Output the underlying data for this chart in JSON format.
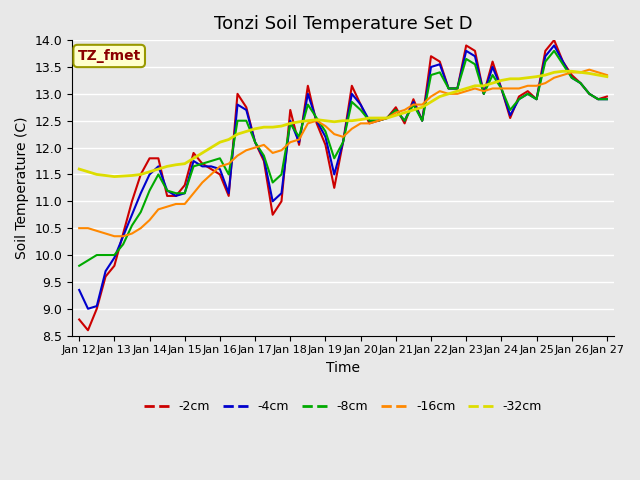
{
  "title": "Tonzi Soil Temperature Set D",
  "xlabel": "Time",
  "ylabel": "Soil Temperature (C)",
  "ylim": [
    8.5,
    14.0
  ],
  "xlim": [
    0,
    15
  ],
  "background_color": "#e8e8e8",
  "plot_bg_color": "#e8e8e8",
  "grid_color": "#ffffff",
  "label_box_text": "TZ_fmet",
  "label_box_bg": "#ffffcc",
  "label_box_fg": "#8b0000",
  "x_tick_labels": [
    "Jan 12",
    "Jan 13",
    "Jan 14",
    "Jan 15",
    "Jan 16",
    "Jan 17",
    "Jan 18",
    "Jan 19",
    "Jan 20",
    "Jan 21",
    "Jan 22",
    "Jan 23",
    "Jan 24",
    "Jan 25",
    "Jan 26",
    "Jan 27"
  ],
  "series": {
    "-2cm": {
      "color": "#cc0000",
      "lw": 1.5
    },
    "-4cm": {
      "color": "#0000cc",
      "lw": 1.5
    },
    "-8cm": {
      "color": "#00aa00",
      "lw": 1.5
    },
    "-16cm": {
      "color": "#ff8800",
      "lw": 1.5
    },
    "-32cm": {
      "color": "#dddd00",
      "lw": 2.0
    }
  },
  "data": {
    "-2cm": [
      8.8,
      8.6,
      9.0,
      9.6,
      9.8,
      10.4,
      11.0,
      11.5,
      11.8,
      11.8,
      11.1,
      11.1,
      11.3,
      11.9,
      11.7,
      11.6,
      11.5,
      11.1,
      13.0,
      12.75,
      12.1,
      11.75,
      10.75,
      11.0,
      12.7,
      12.05,
      13.15,
      12.45,
      12.05,
      11.25,
      12.1,
      13.15,
      12.8,
      12.45,
      12.5,
      12.55,
      12.75,
      12.45,
      12.9,
      12.5,
      13.7,
      13.6,
      13.1,
      13.1,
      13.9,
      13.8,
      13.0,
      13.6,
      13.1,
      12.55,
      12.95,
      13.05,
      12.9,
      13.8,
      14.0,
      13.6,
      13.35,
      13.2,
      13.0,
      12.9,
      12.95
    ],
    "-4cm": [
      9.35,
      9.0,
      9.05,
      9.7,
      9.95,
      10.35,
      10.75,
      11.15,
      11.5,
      11.65,
      11.2,
      11.1,
      11.15,
      11.75,
      11.65,
      11.65,
      11.6,
      11.15,
      12.8,
      12.7,
      12.1,
      11.8,
      11.0,
      11.15,
      12.5,
      12.1,
      13.0,
      12.5,
      12.2,
      11.5,
      12.1,
      13.0,
      12.8,
      12.5,
      12.5,
      12.55,
      12.7,
      12.5,
      12.85,
      12.5,
      13.5,
      13.55,
      13.1,
      13.1,
      13.8,
      13.7,
      13.0,
      13.5,
      13.1,
      12.6,
      12.9,
      13.0,
      12.9,
      13.7,
      13.9,
      13.6,
      13.3,
      13.2,
      13.0,
      12.9,
      12.9
    ],
    "-8cm": [
      9.8,
      9.9,
      10.0,
      10.0,
      10.0,
      10.2,
      10.55,
      10.8,
      11.2,
      11.5,
      11.2,
      11.15,
      11.15,
      11.65,
      11.7,
      11.75,
      11.8,
      11.5,
      12.5,
      12.5,
      12.1,
      11.85,
      11.35,
      11.5,
      12.45,
      12.2,
      12.8,
      12.55,
      12.3,
      11.8,
      12.1,
      12.85,
      12.7,
      12.5,
      12.5,
      12.55,
      12.7,
      12.5,
      12.8,
      12.5,
      13.35,
      13.4,
      13.1,
      13.1,
      13.65,
      13.55,
      13.0,
      13.35,
      13.1,
      12.7,
      12.9,
      13.0,
      12.9,
      13.6,
      13.8,
      13.55,
      13.3,
      13.2,
      13.0,
      12.9,
      12.9
    ],
    "-16cm": [
      10.5,
      10.5,
      10.45,
      10.4,
      10.35,
      10.35,
      10.4,
      10.5,
      10.65,
      10.85,
      10.9,
      10.95,
      10.95,
      11.15,
      11.35,
      11.5,
      11.65,
      11.7,
      11.85,
      11.95,
      12.0,
      12.05,
      11.9,
      11.95,
      12.1,
      12.15,
      12.45,
      12.5,
      12.4,
      12.25,
      12.2,
      12.35,
      12.45,
      12.45,
      12.5,
      12.55,
      12.65,
      12.7,
      12.8,
      12.8,
      12.95,
      13.05,
      13.0,
      13.0,
      13.05,
      13.1,
      13.05,
      13.1,
      13.1,
      13.1,
      13.1,
      13.15,
      13.15,
      13.2,
      13.3,
      13.35,
      13.4,
      13.4,
      13.45,
      13.4,
      13.35
    ],
    "-32cm": [
      11.6,
      11.55,
      11.5,
      11.48,
      11.46,
      11.47,
      11.48,
      11.5,
      11.55,
      11.6,
      11.65,
      11.68,
      11.7,
      11.8,
      11.9,
      12.0,
      12.1,
      12.15,
      12.25,
      12.3,
      12.35,
      12.38,
      12.38,
      12.4,
      12.45,
      12.48,
      12.5,
      12.52,
      12.5,
      12.48,
      12.5,
      12.5,
      12.52,
      12.55,
      12.55,
      12.55,
      12.6,
      12.65,
      12.7,
      12.75,
      12.85,
      12.95,
      13.0,
      13.05,
      13.1,
      13.15,
      13.15,
      13.2,
      13.25,
      13.28,
      13.28,
      13.3,
      13.32,
      13.35,
      13.4,
      13.42,
      13.42,
      13.4,
      13.38,
      13.35,
      13.32
    ]
  }
}
